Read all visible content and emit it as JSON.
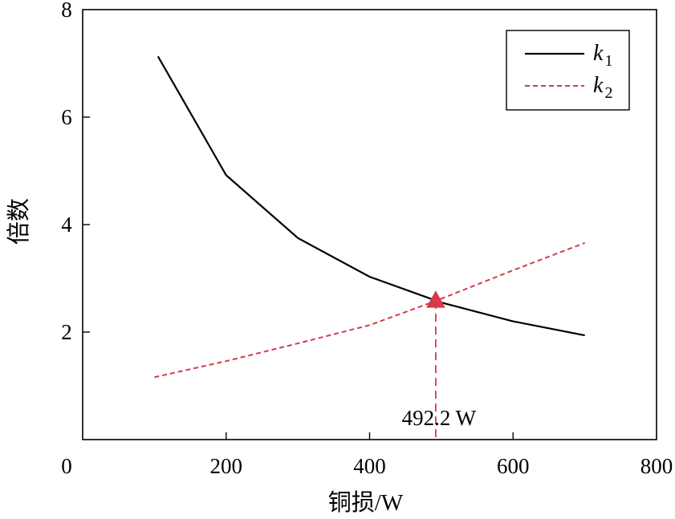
{
  "chart_data": {
    "type": "line",
    "title": "",
    "xlabel": "铜损/W",
    "ylabel": "倍数",
    "xlim": [
      0,
      800
    ],
    "ylim": [
      0,
      8
    ],
    "x_ticks": [
      0,
      200,
      400,
      600,
      800
    ],
    "y_ticks": [
      2,
      4,
      6,
      8
    ],
    "grid": false,
    "legend_position": "top-right",
    "series": [
      {
        "name": "k1",
        "symbol": "k",
        "subscript": "1",
        "color": "#000000",
        "style": "solid",
        "x": [
          105,
          200,
          300,
          400,
          500,
          600,
          700
        ],
        "values": [
          7.13,
          4.92,
          3.75,
          3.03,
          2.55,
          2.2,
          1.94
        ]
      },
      {
        "name": "k2",
        "symbol": "k",
        "subscript": "2",
        "color": "#d63a4a",
        "style": "dashed",
        "x": [
          100,
          200,
          300,
          400,
          492.2,
          600,
          700
        ],
        "values": [
          1.16,
          1.46,
          1.79,
          2.13,
          2.58,
          3.15,
          3.66
        ]
      }
    ],
    "annotations": [
      {
        "label": "492.2 W",
        "x": 492.2,
        "y": 2.58,
        "marker": "triangle",
        "color": "#d63a4a"
      }
    ]
  }
}
